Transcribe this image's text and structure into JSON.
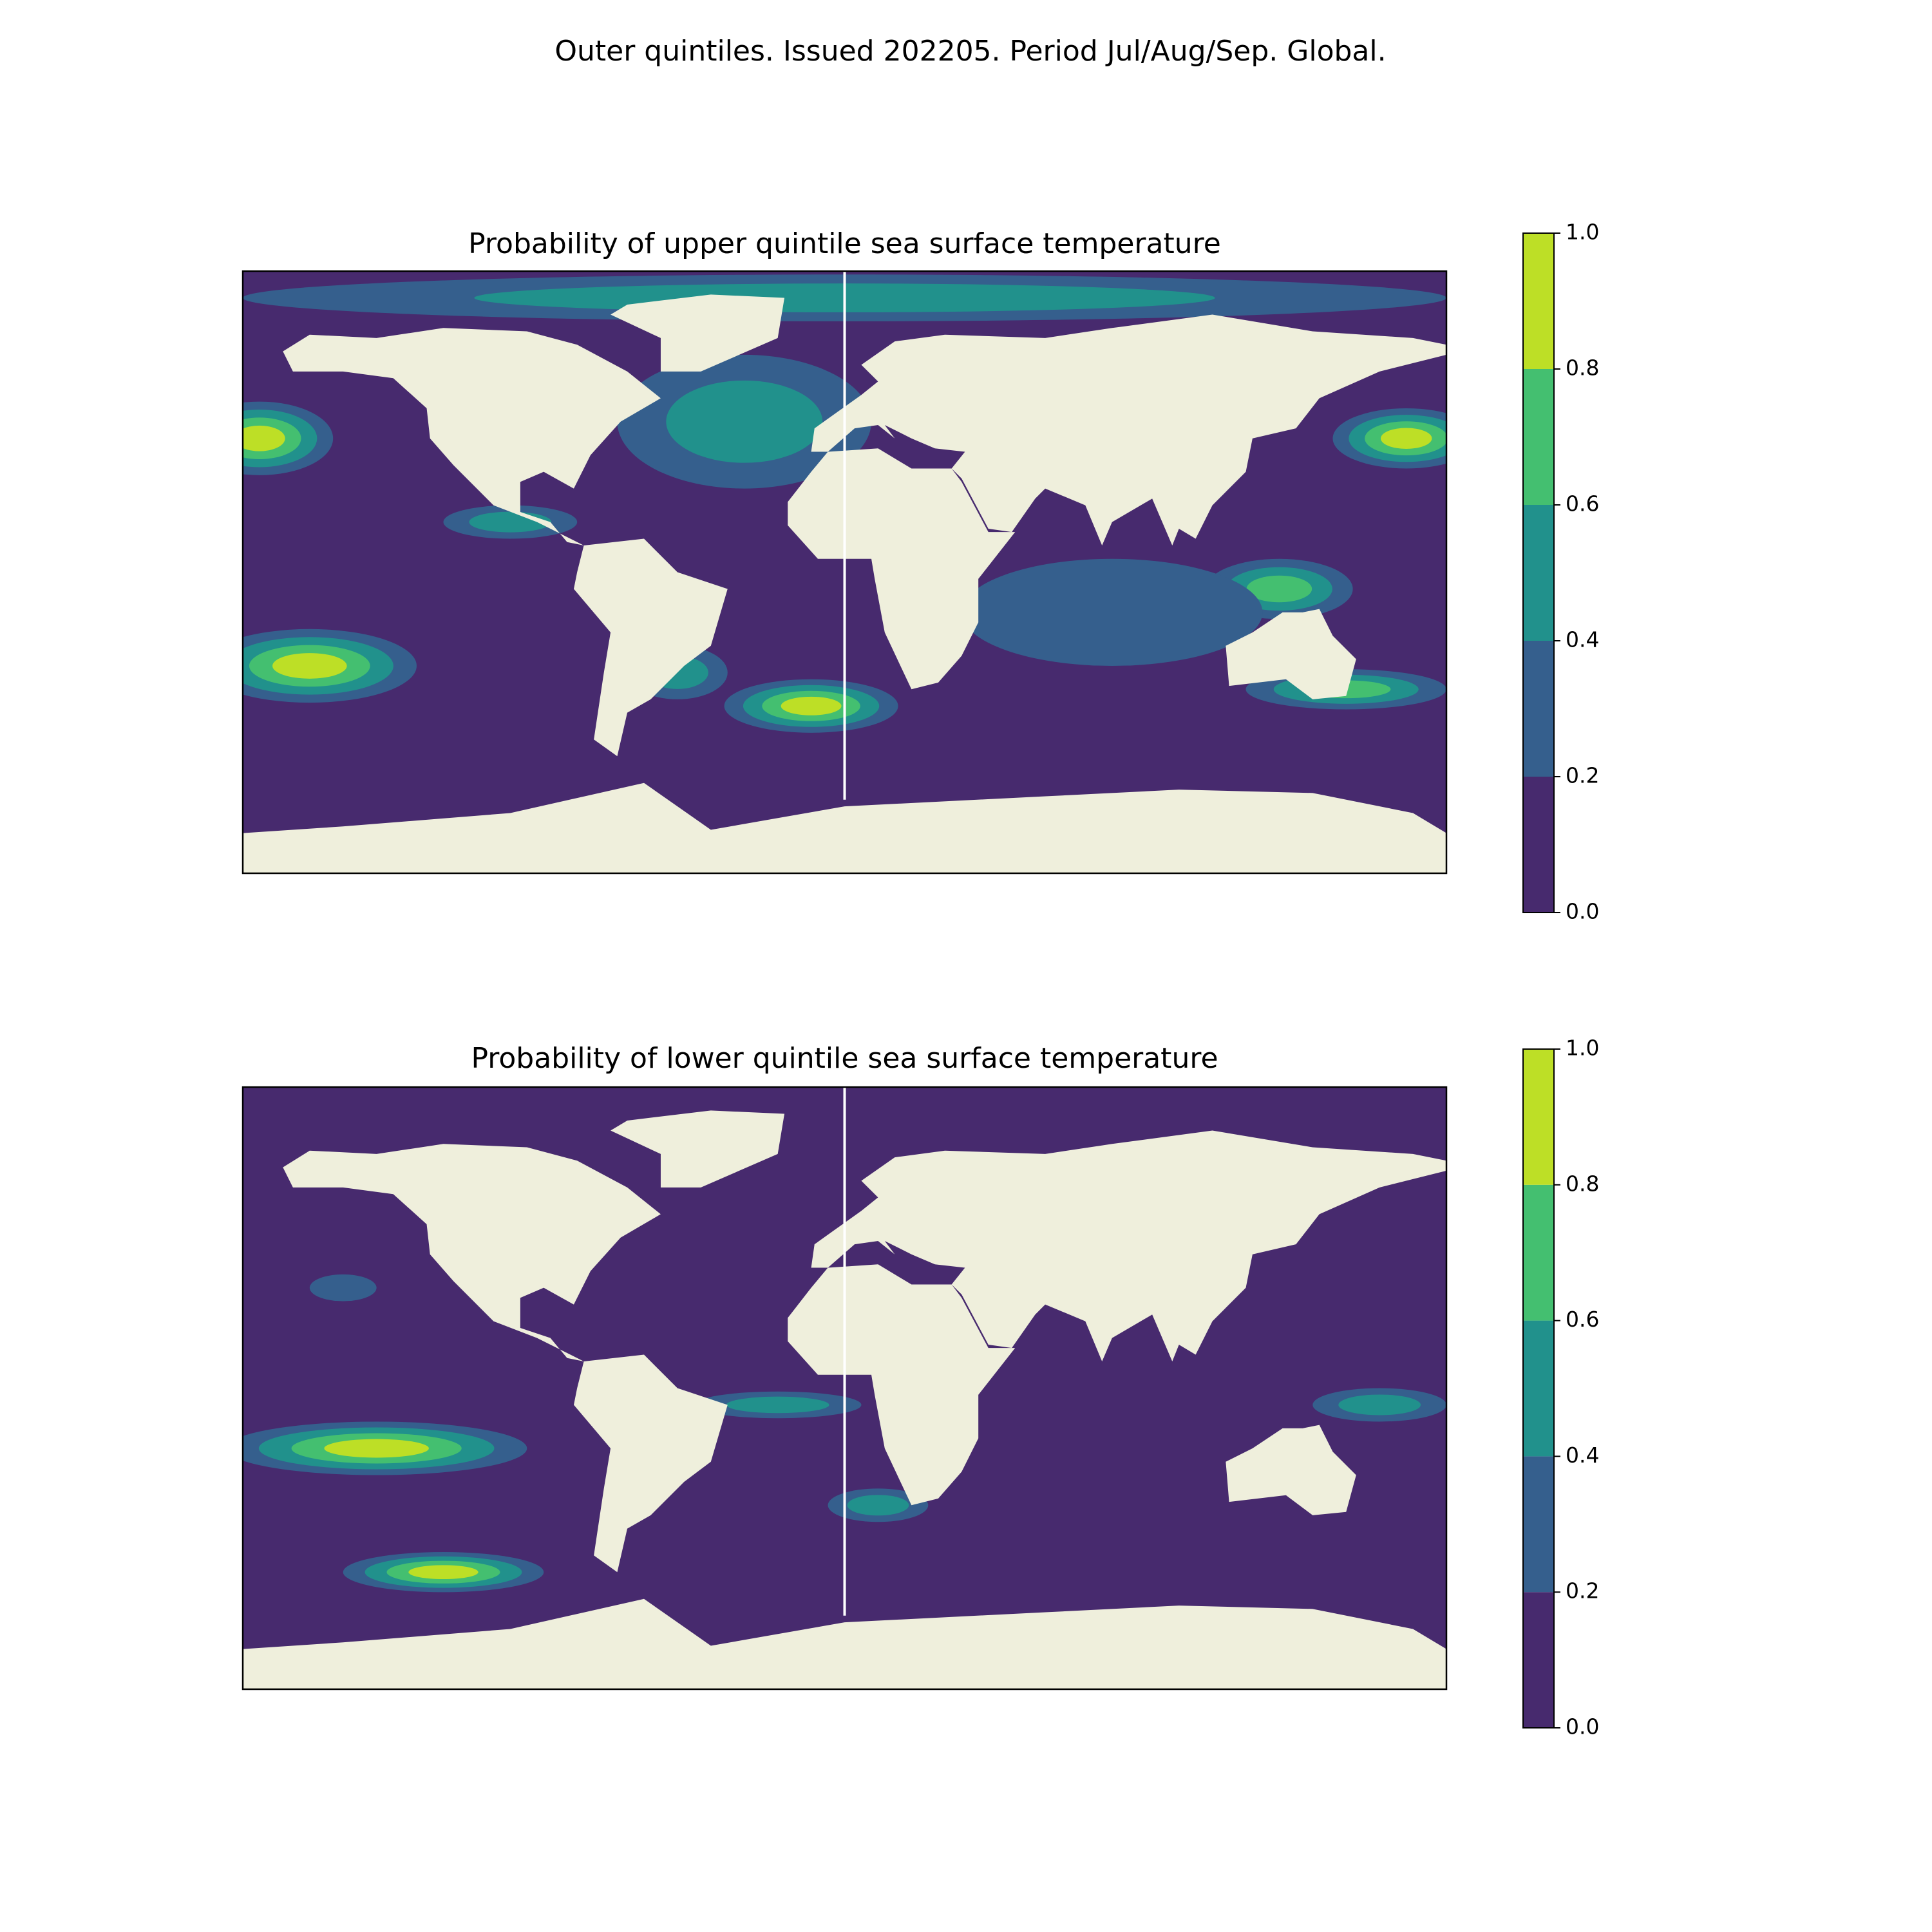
{
  "title": "Outer quintiles. Issued 202205. Period Jul/Aug/Sep. Global.",
  "maps": [
    {
      "title": "Probability of upper quintile sea surface temperature",
      "colorbar": {
        "ticks": [
          {
            "value": 0,
            "label": "0.0"
          },
          0.2,
          0.4,
          0.6,
          0.8,
          {
            "value": 1,
            "label": "1.0"
          }
        ],
        "colors": [
          "#472a6e",
          "#355f8d",
          "#21918c",
          "#44bf70",
          "#bddf26"
        ]
      }
    },
    {
      "title": "Probability of lower quintile sea surface temperature",
      "colorbar": {
        "ticks": [
          {
            "value": 0,
            "label": "0.0"
          },
          0.2,
          0.4,
          0.6,
          0.8,
          {
            "value": 1,
            "label": "1.0"
          }
        ],
        "colors": [
          "#472a6e",
          "#355f8d",
          "#21918c",
          "#44bf70",
          "#bddf26"
        ]
      }
    }
  ]
}
